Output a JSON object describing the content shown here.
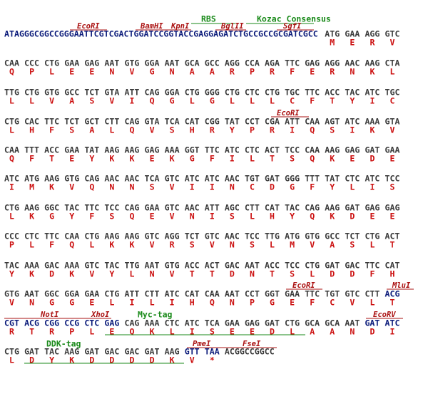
{
  "sequence": {
    "rows": [
      {
        "prefix": "ATAGGGCGGCCGGGAATTCGTCGACTGGATCCGGTACCGAGGAGATCTGCCGCCGCGATCGCC",
        "codons": [
          "ATG",
          "GAA",
          "AGG",
          "GTC"
        ],
        "amino_acids": [
          "M",
          "E",
          "R",
          "V"
        ],
        "annotations": [
          "EcoRI",
          "BamHI",
          "KpnI",
          "RBS",
          "BglII",
          "Kozac Consensus",
          "SgfI"
        ]
      },
      {
        "codons": [
          "CAA",
          "CCC",
          "CTG",
          "GAA",
          "GAG",
          "AAT",
          "GTG",
          "GGA",
          "AAT",
          "GCA",
          "GCC",
          "AGG",
          "CCA",
          "AGA",
          "TTC",
          "GAG",
          "AGG",
          "AAC",
          "AAG",
          "CTA"
        ],
        "amino_acids": [
          "Q",
          "P",
          "L",
          "E",
          "E",
          "N",
          "V",
          "G",
          "N",
          "A",
          "A",
          "R",
          "P",
          "R",
          "F",
          "E",
          "R",
          "N",
          "K",
          "L"
        ]
      },
      {
        "codons": [
          "TTG",
          "CTG",
          "GTG",
          "GCC",
          "TCT",
          "GTA",
          "ATT",
          "CAG",
          "GGA",
          "CTG",
          "GGG",
          "CTG",
          "CTC",
          "CTG",
          "TGC",
          "TTC",
          "ACC",
          "TAC",
          "ATC",
          "TGC"
        ],
        "amino_acids": [
          "L",
          "L",
          "V",
          "A",
          "S",
          "V",
          "I",
          "Q",
          "G",
          "L",
          "G",
          "L",
          "L",
          "L",
          "C",
          "F",
          "T",
          "Y",
          "I",
          "C"
        ]
      },
      {
        "codons": [
          "CTG",
          "CAC",
          "TTC",
          "TCT",
          "GCT",
          "CTT",
          "CAG",
          "GTA",
          "TCA",
          "CAT",
          "CGG",
          "TAT",
          "CCT",
          "CGA",
          "ATT",
          "CAA",
          "AGT",
          "ATC",
          "AAA",
          "GTA"
        ],
        "amino_acids": [
          "L",
          "H",
          "F",
          "S",
          "A",
          "L",
          "Q",
          "V",
          "S",
          "H",
          "R",
          "Y",
          "P",
          "R",
          "I",
          "Q",
          "S",
          "I",
          "K",
          "V"
        ],
        "annotations": [
          "EcoRI"
        ]
      },
      {
        "codons": [
          "CAA",
          "TTT",
          "ACC",
          "GAA",
          "TAT",
          "AAG",
          "AAG",
          "GAG",
          "AAA",
          "GGT",
          "TTC",
          "ATC",
          "CTC",
          "ACT",
          "TCC",
          "CAA",
          "AAG",
          "GAG",
          "GAT",
          "GAA"
        ],
        "amino_acids": [
          "Q",
          "F",
          "T",
          "E",
          "Y",
          "K",
          "K",
          "E",
          "K",
          "G",
          "F",
          "I",
          "L",
          "T",
          "S",
          "Q",
          "K",
          "E",
          "D",
          "E"
        ]
      },
      {
        "codons": [
          "ATC",
          "ATG",
          "AAG",
          "GTG",
          "CAG",
          "AAC",
          "AAC",
          "TCA",
          "GTC",
          "ATC",
          "ATC",
          "AAC",
          "TGT",
          "GAT",
          "GGG",
          "TTT",
          "TAT",
          "CTC",
          "ATC",
          "TCC"
        ],
        "amino_acids": [
          "I",
          "M",
          "K",
          "V",
          "Q",
          "N",
          "N",
          "S",
          "V",
          "I",
          "I",
          "N",
          "C",
          "D",
          "G",
          "F",
          "Y",
          "L",
          "I",
          "S"
        ]
      },
      {
        "codons": [
          "CTG",
          "AAG",
          "GGC",
          "TAC",
          "TTC",
          "TCC",
          "CAG",
          "GAA",
          "GTC",
          "AAC",
          "ATT",
          "AGC",
          "CTT",
          "CAT",
          "TAC",
          "CAG",
          "AAG",
          "GAT",
          "GAG",
          "GAG"
        ],
        "amino_acids": [
          "L",
          "K",
          "G",
          "Y",
          "F",
          "S",
          "Q",
          "E",
          "V",
          "N",
          "I",
          "S",
          "L",
          "H",
          "Y",
          "Q",
          "K",
          "D",
          "E",
          "E"
        ]
      },
      {
        "codons": [
          "CCC",
          "CTC",
          "TTC",
          "CAA",
          "CTG",
          "AAG",
          "AAG",
          "GTC",
          "AGG",
          "TCT",
          "GTC",
          "AAC",
          "TCC",
          "TTG",
          "ATG",
          "GTG",
          "GCC",
          "TCT",
          "CTG",
          "ACT"
        ],
        "amino_acids": [
          "P",
          "L",
          "F",
          "Q",
          "L",
          "K",
          "K",
          "V",
          "R",
          "S",
          "V",
          "N",
          "S",
          "L",
          "M",
          "V",
          "A",
          "S",
          "L",
          "T"
        ]
      },
      {
        "codons": [
          "TAC",
          "AAA",
          "GAC",
          "AAA",
          "GTC",
          "TAC",
          "TTG",
          "AAT",
          "GTG",
          "ACC",
          "ACT",
          "GAC",
          "AAT",
          "ACC",
          "TCC",
          "CTG",
          "GAT",
          "GAC",
          "TTC",
          "CAT"
        ],
        "amino_acids": [
          "Y",
          "K",
          "D",
          "K",
          "V",
          "Y",
          "L",
          "N",
          "V",
          "T",
          "T",
          "D",
          "N",
          "T",
          "S",
          "L",
          "D",
          "D",
          "F",
          "H"
        ]
      },
      {
        "codons": [
          "GTG",
          "AAT",
          "GGC",
          "GGA",
          "GAA",
          "CTG",
          "ATT",
          "CTT",
          "ATC",
          "CAT",
          "CAA",
          "AAT",
          "CCT",
          "GGT",
          "GAA",
          "TTC",
          "TGT",
          "GTC",
          "CTT",
          "ACG"
        ],
        "amino_acids": [
          "V",
          "N",
          "G",
          "G",
          "E",
          "L",
          "I",
          "L",
          "I",
          "H",
          "Q",
          "N",
          "P",
          "G",
          "E",
          "F",
          "C",
          "V",
          "L",
          "T"
        ],
        "annotations": [
          "EcoRI",
          "MluI"
        ]
      },
      {
        "codons": [
          "CGT",
          "ACG",
          "CGG",
          "CCG",
          "CTC",
          "GAG",
          "CAG",
          "AAA",
          "CTC",
          "ATC",
          "TCA",
          "GAA",
          "GAG",
          "GAT",
          "CTG",
          "GCA",
          "GCA",
          "AAT",
          "GAT",
          "ATC"
        ],
        "amino_acids": [
          "R",
          "T",
          "R",
          "P",
          "L",
          "E",
          "Q",
          "K",
          "L",
          "I",
          "S",
          "E",
          "E",
          "D",
          "L",
          "A",
          "A",
          "N",
          "D",
          "I"
        ],
        "annotations": [
          "NotI",
          "XhoI",
          "Myc-tag",
          "EcoRV"
        ]
      },
      {
        "codons": [
          "CTG",
          "GAT",
          "TAC",
          "AAG",
          "GAT",
          "GAC",
          "GAC",
          "GAT",
          "AAG",
          "GTT",
          "TAA"
        ],
        "suffix": "ACGGCCGGCC",
        "amino_acids": [
          "L",
          "D",
          "Y",
          "K",
          "D",
          "D",
          "D",
          "D",
          "K",
          "V",
          "*"
        ],
        "annotations": [
          "DDK-tag",
          "PmeI",
          "FseI"
        ]
      }
    ]
  }
}
